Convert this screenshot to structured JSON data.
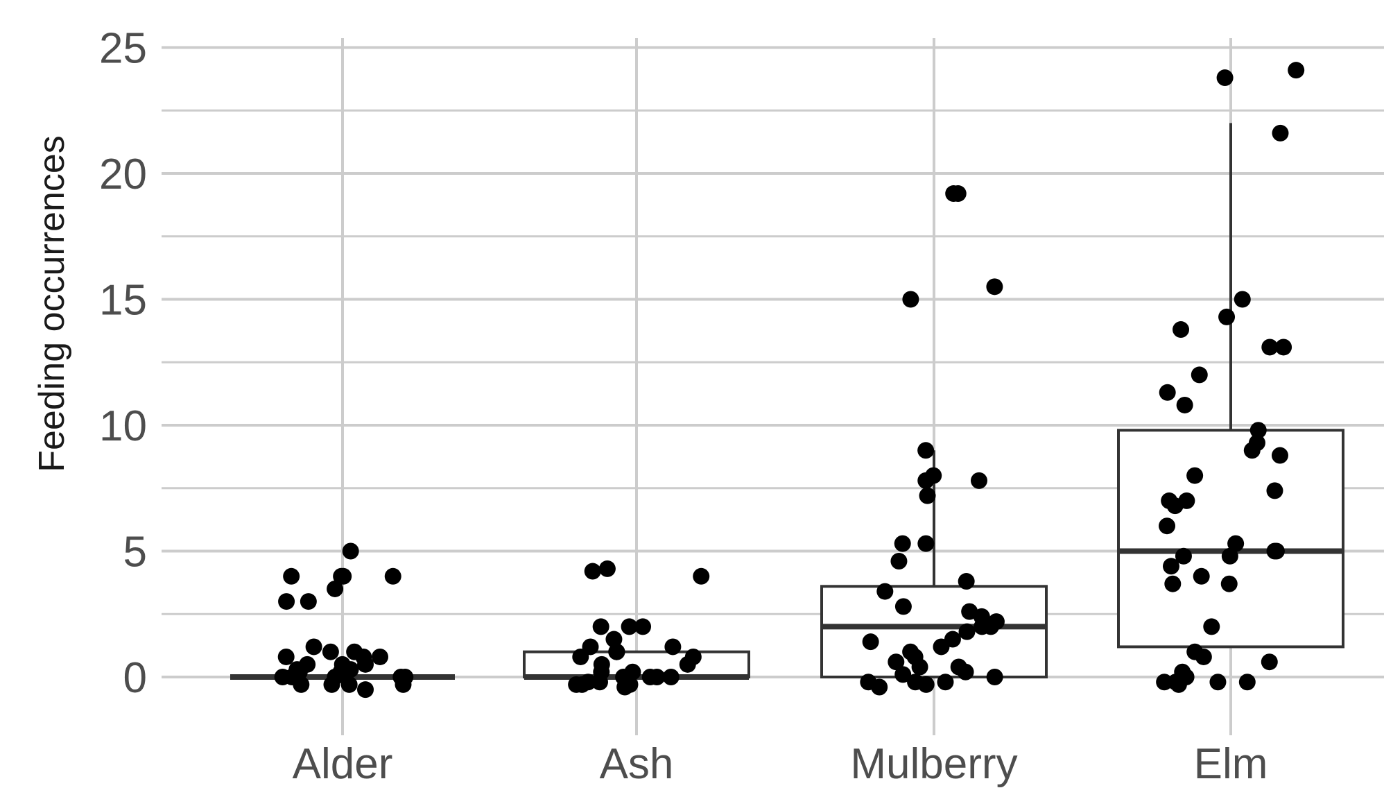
{
  "chart_data": {
    "type": "box",
    "title": "",
    "xlabel": "",
    "ylabel": "Feeding occurrences",
    "categories": [
      "Alder",
      "Ash",
      "Mulberry",
      "Elm"
    ],
    "ylim": [
      -1,
      25.5
    ],
    "yticks": [
      0,
      5,
      10,
      15,
      20,
      25
    ],
    "grid": true,
    "legend": "none",
    "colors": {
      "grid": "#cccccc",
      "box": "#333333",
      "point": "#000000",
      "text": "#4d4d4d"
    },
    "boxes": [
      {
        "category": "Alder",
        "min": 0,
        "q1": 0,
        "median": 0,
        "q3": 0,
        "max": 0
      },
      {
        "category": "Ash",
        "min": 0,
        "q1": 0,
        "median": 0,
        "q3": 1,
        "max": 1
      },
      {
        "category": "Mulberry",
        "min": 0,
        "q1": 0,
        "median": 2,
        "q3": 3.6,
        "max": 9
      },
      {
        "category": "Elm",
        "min": 1.2,
        "q1": 1.2,
        "median": 5,
        "q3": 9.8,
        "max": 22
      }
    ],
    "points": [
      {
        "category": "Alder",
        "values": [
          4,
          5,
          4,
          3,
          3.5,
          4,
          3,
          4,
          1,
          1,
          1.2,
          0.8,
          0.8,
          0.8,
          0.5,
          0.5,
          0.5,
          0.3,
          0.3,
          0.2,
          0.2,
          0,
          0,
          0,
          0,
          0,
          -0.3,
          -0.3,
          -0.3,
          -0.3,
          -0.5
        ]
      },
      {
        "category": "Ash",
        "values": [
          4.3,
          4.2,
          4,
          2,
          2,
          2,
          1.5,
          1.2,
          1.2,
          1,
          1,
          0.8,
          0.8,
          0.5,
          0.5,
          0.2,
          0.2,
          0,
          0,
          0,
          0,
          -0.2,
          -0.2,
          -0.3,
          -0.3,
          -0.3,
          -0.4
        ]
      },
      {
        "category": "Mulberry",
        "values": [
          19.2,
          19.2,
          15.5,
          15,
          9,
          8,
          7.8,
          7.8,
          7.2,
          5.3,
          5.3,
          4.6,
          3.8,
          3.4,
          2.8,
          2.6,
          2.4,
          2.2,
          2,
          2,
          1.8,
          1.5,
          1.2,
          1.4,
          1,
          0.8,
          0.6,
          0.4,
          0.4,
          0.2,
          0.1,
          0,
          -0.2,
          -0.2,
          -0.2,
          -0.3,
          -0.4
        ]
      },
      {
        "category": "Elm",
        "values": [
          24.1,
          23.8,
          21.6,
          15,
          14.3,
          13.8,
          13.1,
          13.1,
          12,
          11.3,
          10.8,
          9.8,
          9.3,
          9,
          8.8,
          8,
          7.4,
          7,
          7,
          6.8,
          6,
          5.3,
          5,
          5,
          4.8,
          4.8,
          4.4,
          4,
          3.7,
          3.7,
          2,
          1,
          0.8,
          0.6,
          0.2,
          0,
          -0.2,
          -0.2,
          -0.2,
          -0.2,
          -0.3
        ]
      }
    ]
  }
}
